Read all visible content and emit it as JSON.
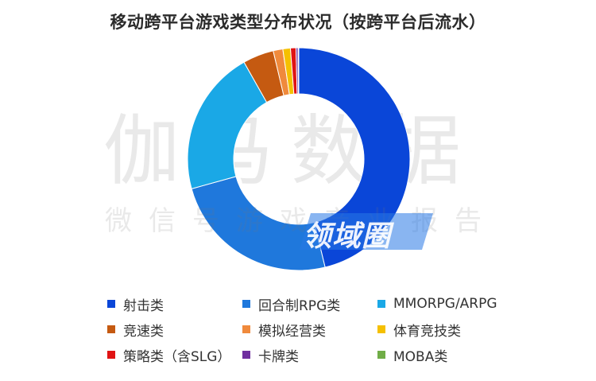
{
  "title": "移动跨平台游戏类型分布状况（按跨平台后流水）",
  "watermark": {
    "main": "伽马数据",
    "sub": "微信号游戏产业报告",
    "badge": "领域圈"
  },
  "chart_data": {
    "type": "pie",
    "donut": true,
    "legend_position": "bottom",
    "series": [
      {
        "name": "射击类",
        "value": 46.2,
        "color": "#0a46d8"
      },
      {
        "name": "回合制RPG类",
        "value": 24.5,
        "color": "#1f78dc"
      },
      {
        "name": "MMORPG/ARPG",
        "value": 21.1,
        "color": "#1aa8e6"
      },
      {
        "name": "竞速类",
        "value": 4.5,
        "color": "#c55a11"
      },
      {
        "name": "模拟经营类",
        "value": 1.4,
        "color": "#f08a3c"
      },
      {
        "name": "体育竞技类",
        "value": 1.1,
        "color": "#f5c000"
      },
      {
        "name": "策略类（含SLG）",
        "value": 0.8,
        "color": "#e01414"
      },
      {
        "name": "卡牌类",
        "value": 0.3,
        "color": "#7030a0"
      },
      {
        "name": "MOBA类",
        "value": 0.1,
        "color": "#70ad47"
      }
    ]
  }
}
